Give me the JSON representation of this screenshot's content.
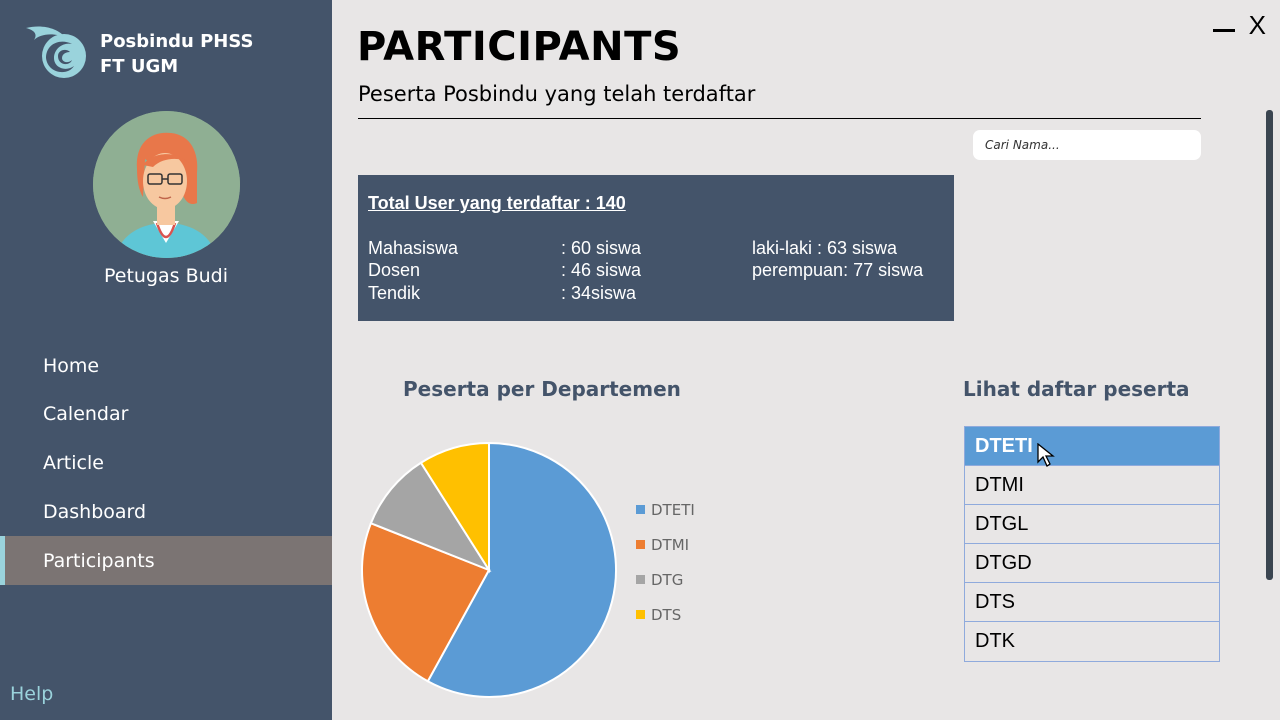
{
  "app": {
    "name_line1": "Posbindu PHSS",
    "name_line2": "FT UGM"
  },
  "user": {
    "name": "Petugas Budi"
  },
  "nav": {
    "items": [
      {
        "label": "Home"
      },
      {
        "label": "Calendar"
      },
      {
        "label": "Article"
      },
      {
        "label": "Dashboard"
      },
      {
        "label": "Participants"
      }
    ],
    "active": "Participants",
    "help_label": "Help"
  },
  "window": {
    "minimize_icon": "minimize-icon",
    "close_label": "X"
  },
  "header": {
    "title": "PARTICIPANTS",
    "subtitle": "Peserta Posbindu yang telah terdaftar"
  },
  "search": {
    "placeholder": "Cari Nama..."
  },
  "stats": {
    "title": "Total User yang terdaftar : 140",
    "rows": [
      {
        "label": "Mahasiswa",
        "value": ": 60 siswa",
        "extra": "laki-laki  : 63 siswa"
      },
      {
        "label": "Dosen",
        "value": ": 46 siswa",
        "extra": "perempuan: 77 siswa"
      },
      {
        "label": "Tendik",
        "value": ": 34siswa",
        "extra": ""
      }
    ]
  },
  "chart_section": {
    "title": "Peserta per Departemen"
  },
  "chart_data": {
    "type": "pie",
    "title": "Peserta per Departemen",
    "categories": [
      "DTETI",
      "DTMI",
      "DTG",
      "DTS"
    ],
    "values": [
      58,
      23,
      10,
      9
    ],
    "colors": [
      "#5b9bd5",
      "#ed7d31",
      "#a5a5a5",
      "#ffc000"
    ],
    "legend_position": "right"
  },
  "list_section": {
    "title": "Lihat daftar peserta",
    "items": [
      "DTETI",
      "DTMI",
      "DTGL",
      "DTGD",
      "DTS",
      "DTK"
    ],
    "selected": "DTETI"
  }
}
